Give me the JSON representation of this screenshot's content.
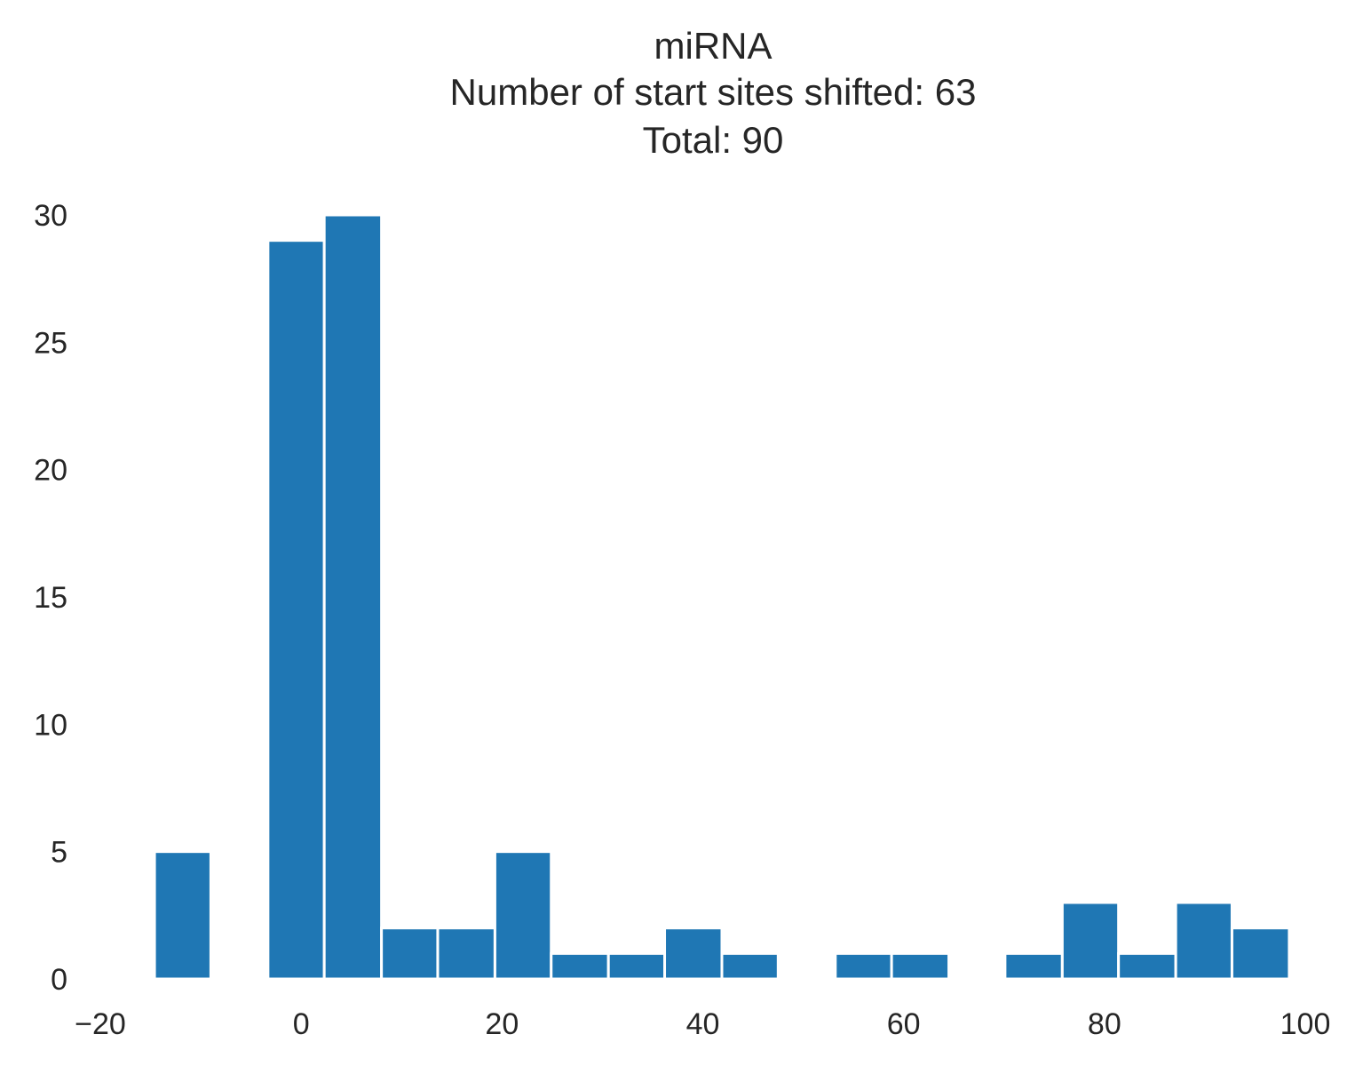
{
  "chart_data": {
    "type": "bar",
    "title_lines": [
      "miRNA",
      "Number of start sites shifted: 63",
      "Total: 90"
    ],
    "xlabel": "",
    "ylabel": "",
    "xlim": [
      -20,
      100
    ],
    "ylim": [
      0,
      30
    ],
    "x_ticks": [
      -20,
      0,
      20,
      40,
      60,
      80,
      100
    ],
    "x_tick_labels": [
      "−20",
      "0",
      "20",
      "40",
      "60",
      "80",
      "100"
    ],
    "y_ticks": [
      0,
      5,
      10,
      15,
      20,
      25,
      30
    ],
    "y_tick_labels": [
      "0",
      "5",
      "10",
      "15",
      "20",
      "25",
      "30"
    ],
    "grid": false,
    "bar_color": "#1f77b4",
    "bins": [
      {
        "x0": -14.6,
        "x1": -9.0,
        "count": 5
      },
      {
        "x0": -3.3,
        "x1": 2.3,
        "count": 29
      },
      {
        "x0": 2.3,
        "x1": 8.0,
        "count": 30
      },
      {
        "x0": 8.0,
        "x1": 13.6,
        "count": 2
      },
      {
        "x0": 13.6,
        "x1": 19.3,
        "count": 2
      },
      {
        "x0": 19.3,
        "x1": 24.9,
        "count": 5
      },
      {
        "x0": 24.9,
        "x1": 30.6,
        "count": 1
      },
      {
        "x0": 30.6,
        "x1": 36.2,
        "count": 1
      },
      {
        "x0": 36.2,
        "x1": 41.9,
        "count": 2
      },
      {
        "x0": 41.9,
        "x1": 47.5,
        "count": 1
      },
      {
        "x0": 53.2,
        "x1": 58.8,
        "count": 1
      },
      {
        "x0": 58.8,
        "x1": 64.5,
        "count": 1
      },
      {
        "x0": 70.1,
        "x1": 75.8,
        "count": 1
      },
      {
        "x0": 75.8,
        "x1": 81.4,
        "count": 3
      },
      {
        "x0": 81.4,
        "x1": 87.1,
        "count": 1
      },
      {
        "x0": 87.1,
        "x1": 92.7,
        "count": 3
      },
      {
        "x0": 92.7,
        "x1": 98.4,
        "count": 2
      }
    ]
  }
}
